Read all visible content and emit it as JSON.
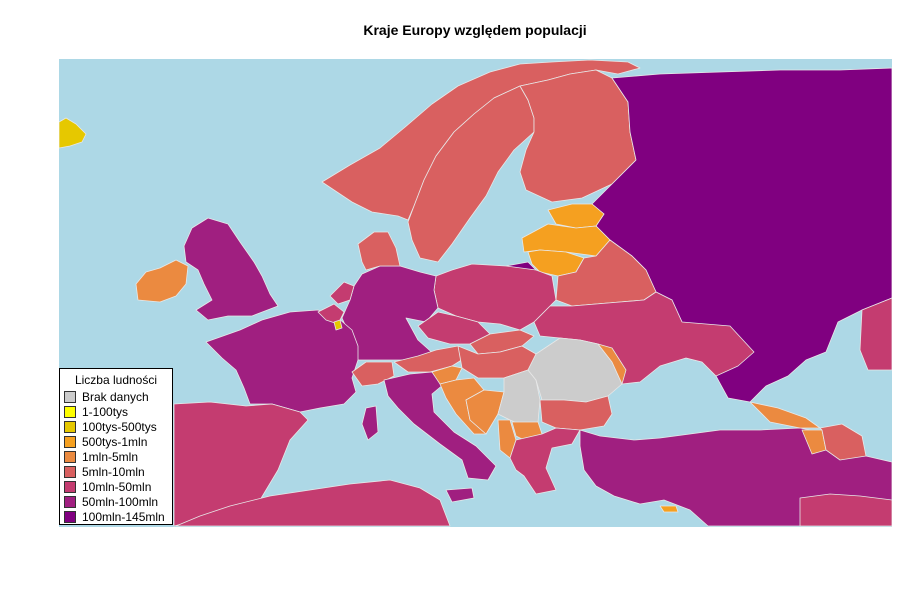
{
  "title": "Kraje Europy względem populacji",
  "colors": {
    "sea": "#add8e6",
    "border": "#e8e8e8",
    "no_data": "#cccccc",
    "c_1_100k": "#ffff00",
    "c_100k_500k": "#e6c800",
    "c_500k_1m": "#f5a020",
    "c_1m_5m": "#eb8a40",
    "c_5m_10m": "#d96060",
    "c_10m_50m": "#c43c70",
    "c_50m_100m": "#a01f80",
    "c_100m_145m": "#800080"
  },
  "legend": {
    "title": "Liczba ludności",
    "items": [
      {
        "label": "Brak danych",
        "color": "#cccccc"
      },
      {
        "label": "1-100tys",
        "color": "#ffff00"
      },
      {
        "label": "100tys-500tys",
        "color": "#e6c800"
      },
      {
        "label": "500tys-1mln",
        "color": "#f5a020"
      },
      {
        "label": "1mln-5mln",
        "color": "#eb8a40"
      },
      {
        "label": "5mln-10mln",
        "color": "#d96060"
      },
      {
        "label": "10mln-50mln",
        "color": "#c43c70"
      },
      {
        "label": "50mln-100mln",
        "color": "#a01f80"
      },
      {
        "label": "100mln-145mln",
        "color": "#800080"
      }
    ]
  },
  "regions": [
    {
      "name": "Iceland",
      "category": "100tys-500tys",
      "color": "#e6c800"
    },
    {
      "name": "Norway",
      "category": "5mln-10mln",
      "color": "#d96060"
    },
    {
      "name": "Sweden",
      "category": "5mln-10mln",
      "color": "#d96060"
    },
    {
      "name": "Finland",
      "category": "5mln-10mln",
      "color": "#d96060"
    },
    {
      "name": "Russia",
      "category": "100mln-145mln",
      "color": "#800080"
    },
    {
      "name": "Estonia",
      "category": "500tys-1mln",
      "color": "#f5a020"
    },
    {
      "name": "Latvia",
      "category": "500tys-1mln",
      "color": "#f5a020"
    },
    {
      "name": "Lithuania",
      "category": "500tys-1mln",
      "color": "#f5a020"
    },
    {
      "name": "Kaliningrad",
      "category": "100mln-145mln",
      "color": "#800080"
    },
    {
      "name": "Belarus",
      "category": "5mln-10mln",
      "color": "#d96060"
    },
    {
      "name": "Ukraine",
      "category": "10mln-50mln",
      "color": "#c43c70"
    },
    {
      "name": "Poland",
      "category": "10mln-50mln",
      "color": "#c43c70"
    },
    {
      "name": "Germany",
      "category": "50mln-100mln",
      "color": "#a01f80"
    },
    {
      "name": "Denmark",
      "category": "5mln-10mln",
      "color": "#d96060"
    },
    {
      "name": "United Kingdom",
      "category": "50mln-100mln",
      "color": "#a01f80"
    },
    {
      "name": "Ireland",
      "category": "1mln-5mln",
      "color": "#eb8a40"
    },
    {
      "name": "France",
      "category": "50mln-100mln",
      "color": "#a01f80"
    },
    {
      "name": "Spain",
      "category": "10mln-50mln",
      "color": "#c43c70"
    },
    {
      "name": "Netherlands",
      "category": "10mln-50mln",
      "color": "#c43c70"
    },
    {
      "name": "Belgium",
      "category": "10mln-50mln",
      "color": "#c43c70"
    },
    {
      "name": "Luxembourg",
      "category": "100tys-500tys",
      "color": "#e6c800"
    },
    {
      "name": "Switzerland",
      "category": "5mln-10mln",
      "color": "#d96060"
    },
    {
      "name": "Austria",
      "category": "5mln-10mln",
      "color": "#d96060"
    },
    {
      "name": "Czech Republic",
      "category": "10mln-50mln",
      "color": "#c43c70"
    },
    {
      "name": "Slovakia",
      "category": "5mln-10mln",
      "color": "#d96060"
    },
    {
      "name": "Hungary",
      "category": "5mln-10mln",
      "color": "#d96060"
    },
    {
      "name": "Italy",
      "category": "50mln-100mln",
      "color": "#a01f80"
    },
    {
      "name": "Slovenia",
      "category": "1mln-5mln",
      "color": "#eb8a40"
    },
    {
      "name": "Croatia",
      "category": "1mln-5mln",
      "color": "#eb8a40"
    },
    {
      "name": "Bosnia and Herzegovina",
      "category": "1mln-5mln",
      "color": "#eb8a40"
    },
    {
      "name": "Serbia",
      "category": "Brak danych",
      "color": "#cccccc"
    },
    {
      "name": "Romania",
      "category": "Brak danych",
      "color": "#cccccc"
    },
    {
      "name": "Moldova",
      "category": "1mln-5mln",
      "color": "#eb8a40"
    },
    {
      "name": "Bulgaria",
      "category": "5mln-10mln",
      "color": "#d96060"
    },
    {
      "name": "Albania",
      "category": "1mln-5mln",
      "color": "#eb8a40"
    },
    {
      "name": "North Macedonia",
      "category": "1mln-5mln",
      "color": "#eb8a40"
    },
    {
      "name": "Greece",
      "category": "10mln-50mln",
      "color": "#c43c70"
    },
    {
      "name": "Turkey",
      "category": "50mln-100mln",
      "color": "#a01f80"
    },
    {
      "name": "Georgia",
      "category": "1mln-5mln",
      "color": "#eb8a40"
    },
    {
      "name": "Armenia",
      "category": "1mln-5mln",
      "color": "#eb8a40"
    },
    {
      "name": "Azerbaijan",
      "category": "5mln-10mln",
      "color": "#d96060"
    },
    {
      "name": "Kazakhstan",
      "category": "10mln-50mln",
      "color": "#c43c70"
    },
    {
      "name": "Sardinia/Corsica",
      "category": "50mln-100mln",
      "color": "#a01f80"
    },
    {
      "name": "Algeria/Tunisia",
      "category": "10mln-50mln",
      "color": "#c43c70"
    },
    {
      "name": "Syria",
      "category": "10mln-50mln",
      "color": "#c43c70"
    },
    {
      "name": "Cyprus",
      "category": "500tys-1mln",
      "color": "#f5a020"
    }
  ]
}
